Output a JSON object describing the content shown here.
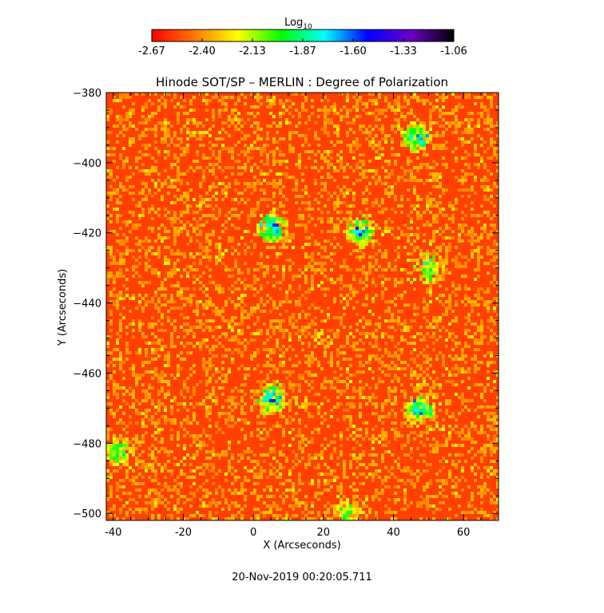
{
  "chart_data": {
    "type": "heatmap",
    "title": "Hinode SOT/SP – MERLIN : Degree of Polarization",
    "xlabel": "X (Arcseconds)",
    "ylabel": "Y (Arcseconds)",
    "xlim": [
      -42,
      70
    ],
    "ylim": [
      -502,
      -380
    ],
    "x_ticks": [
      -40,
      -20,
      0,
      20,
      40,
      60
    ],
    "y_ticks": [
      -380,
      -400,
      -420,
      -440,
      -460,
      -480,
      -500
    ],
    "colorbar": {
      "label_base": "Log",
      "label_sub": "10",
      "ticks": [
        "-2.67",
        "-2.40",
        "-2.13",
        "-1.87",
        "-1.60",
        "-1.33",
        "-1.06"
      ],
      "range": [
        -2.67,
        -1.06
      ],
      "colors": [
        "#ff0000",
        "#ff7a00",
        "#ffff00",
        "#00ff00",
        "#00ffff",
        "#0000ff",
        "#6a00c8",
        "#000000"
      ]
    },
    "field_mean": -2.55,
    "features": [
      {
        "x": 5,
        "y": -418,
        "kind": "strong-network"
      },
      {
        "x": 46,
        "y": -392,
        "kind": "strong-network"
      },
      {
        "x": 30,
        "y": -419,
        "kind": "strong-network"
      },
      {
        "x": 5,
        "y": -467,
        "kind": "strong-network"
      },
      {
        "x": 47,
        "y": -470,
        "kind": "strong-network"
      },
      {
        "x": 26,
        "y": -499,
        "kind": "network"
      },
      {
        "x": -39,
        "y": -482,
        "kind": "network"
      },
      {
        "x": 50,
        "y": -430,
        "kind": "network"
      }
    ]
  },
  "footer": {
    "timestamp": "20-Nov-2019 00:20:05.711"
  }
}
